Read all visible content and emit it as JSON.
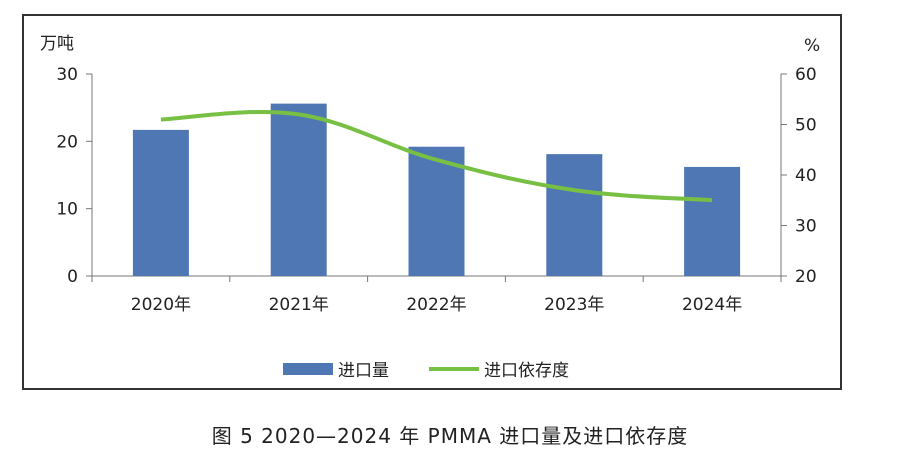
{
  "caption": "图 5  2020—2024 年 PMMA 进口量及进口依存度",
  "chart_data": {
    "type": "bar+line",
    "categories": [
      "2020年",
      "2021年",
      "2022年",
      "2023年",
      "2024年"
    ],
    "series": [
      {
        "name": "进口量",
        "type": "bar",
        "axis": "left",
        "color": "#4f77b4",
        "values": [
          21.7,
          25.6,
          19.2,
          18.1,
          16.2
        ]
      },
      {
        "name": "进口依存度",
        "type": "line",
        "axis": "right",
        "color": "#77c043",
        "values": [
          51,
          52,
          43,
          37,
          35
        ]
      }
    ],
    "y_left": {
      "label": "万吨",
      "ticks": [
        "0",
        "10",
        "20",
        "30"
      ],
      "range": [
        0,
        30
      ]
    },
    "y_right": {
      "label": "%",
      "ticks": [
        "20",
        "30",
        "40",
        "50",
        "60"
      ],
      "range": [
        20,
        60
      ]
    },
    "legend_position": "bottom"
  }
}
